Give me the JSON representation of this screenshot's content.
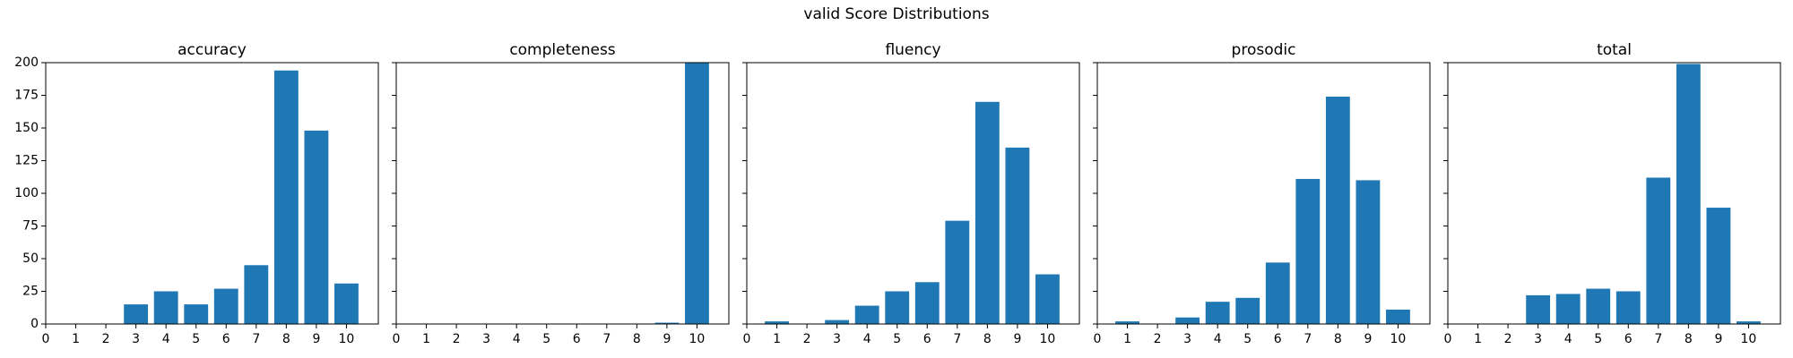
{
  "title": "valid Score Distributions",
  "chart_data": [
    {
      "type": "bar",
      "title": "accuracy",
      "color": "#1f77b4",
      "x": [
        0,
        1,
        2,
        3,
        4,
        5,
        6,
        7,
        8,
        9,
        10
      ],
      "values": [
        0,
        0,
        0,
        15,
        25,
        15,
        27,
        45,
        194,
        148,
        31
      ],
      "xlim": [
        0,
        11.06
      ],
      "ylim": [
        0,
        200
      ],
      "xticks": [
        0,
        1,
        2,
        3,
        4,
        5,
        6,
        7,
        8,
        9,
        10
      ],
      "yticks": [
        0,
        25,
        50,
        75,
        100,
        125,
        150,
        175,
        200
      ],
      "ytick_labels": true
    },
    {
      "type": "bar",
      "title": "completeness",
      "color": "#1f77b4",
      "x": [
        0,
        1,
        2,
        3,
        4,
        5,
        6,
        7,
        8,
        9,
        10
      ],
      "values": [
        0,
        0,
        0,
        0,
        0,
        0,
        0,
        0,
        0,
        1,
        200
      ],
      "xlim": [
        0,
        11.06
      ],
      "ylim": [
        0,
        200
      ],
      "xticks": [
        0,
        1,
        2,
        3,
        4,
        5,
        6,
        7,
        8,
        9,
        10
      ],
      "yticks": [
        0,
        25,
        50,
        75,
        100,
        125,
        150,
        175,
        200
      ],
      "ytick_labels": false
    },
    {
      "type": "bar",
      "title": "fluency",
      "color": "#1f77b4",
      "x": [
        0,
        1,
        2,
        3,
        4,
        5,
        6,
        7,
        8,
        9,
        10
      ],
      "values": [
        0,
        2,
        0,
        3,
        14,
        25,
        32,
        79,
        170,
        135,
        38
      ],
      "xlim": [
        0,
        11.06
      ],
      "ylim": [
        0,
        200
      ],
      "xticks": [
        0,
        1,
        2,
        3,
        4,
        5,
        6,
        7,
        8,
        9,
        10
      ],
      "yticks": [
        0,
        25,
        50,
        75,
        100,
        125,
        150,
        175,
        200
      ],
      "ytick_labels": false
    },
    {
      "type": "bar",
      "title": "prosodic",
      "color": "#1f77b4",
      "x": [
        0,
        1,
        2,
        3,
        4,
        5,
        6,
        7,
        8,
        9,
        10
      ],
      "values": [
        0,
        2,
        0,
        5,
        17,
        20,
        47,
        111,
        174,
        110,
        11
      ],
      "xlim": [
        0,
        11.06
      ],
      "ylim": [
        0,
        200
      ],
      "xticks": [
        0,
        1,
        2,
        3,
        4,
        5,
        6,
        7,
        8,
        9,
        10
      ],
      "yticks": [
        0,
        25,
        50,
        75,
        100,
        125,
        150,
        175,
        200
      ],
      "ytick_labels": false
    },
    {
      "type": "bar",
      "title": "total",
      "color": "#1f77b4",
      "x": [
        0,
        1,
        2,
        3,
        4,
        5,
        6,
        7,
        8,
        9,
        10
      ],
      "values": [
        0,
        0,
        0,
        22,
        23,
        27,
        25,
        112,
        199,
        89,
        2
      ],
      "xlim": [
        0,
        11.06
      ],
      "ylim": [
        0,
        200
      ],
      "xticks": [
        0,
        1,
        2,
        3,
        4,
        5,
        6,
        7,
        8,
        9,
        10
      ],
      "yticks": [
        0,
        25,
        50,
        75,
        100,
        125,
        150,
        175,
        200
      ],
      "ytick_labels": false
    }
  ]
}
